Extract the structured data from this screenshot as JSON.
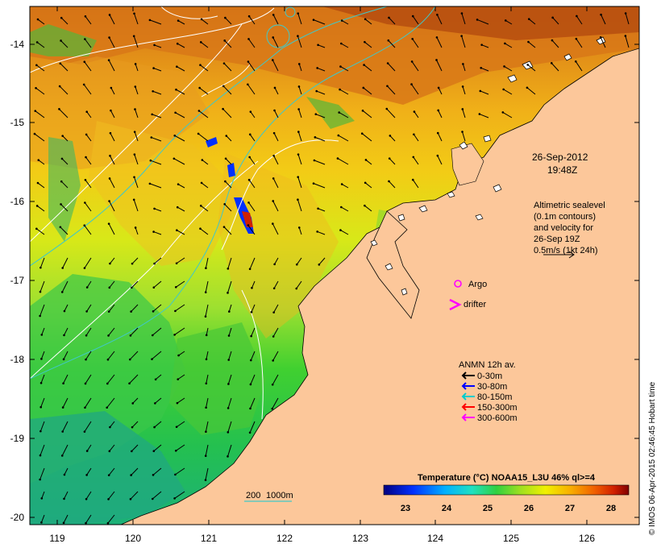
{
  "map": {
    "lon_ticks": [
      "119",
      "120",
      "121",
      "122",
      "123",
      "124",
      "125",
      "126"
    ],
    "lat_ticks": [
      "-14",
      "-15",
      "-16",
      "-17",
      "-18",
      "-19",
      "-20"
    ]
  },
  "annotations": {
    "date": "26-Sep-2012",
    "time": "19:48Z",
    "altimetry_lines": [
      "Altimetric sealevel",
      "(0.1m contours)",
      "and velocity for",
      "26-Sep 19Z",
      "0.5m/s (1kt 24h)"
    ],
    "argo_label": "Argo",
    "drifter_label": "drifter",
    "depth_label_a": "200",
    "depth_label_b": "1000m"
  },
  "legend": {
    "title": "ANMN 12h av.",
    "items": [
      {
        "label": "0-30m",
        "color": "#000000"
      },
      {
        "label": "30-80m",
        "color": "#0000ff"
      },
      {
        "label": "80-150m",
        "color": "#00cccc"
      },
      {
        "label": "150-300m",
        "color": "#ff0000"
      },
      {
        "label": "300-600m",
        "color": "#ff00ff"
      }
    ]
  },
  "colorbar": {
    "title": "Temperature (°C) NOAA15_L3U 46% ql>=4",
    "ticks": [
      "23",
      "24",
      "25",
      "26",
      "27",
      "28"
    ]
  },
  "credit": "© IMOS 06-Apr-2015 02:46:45 Hobart time",
  "colors": {
    "land": "#fcc79a",
    "argo": "#ff00ff",
    "drifter": "#ff00ff",
    "contour": "#ffffff",
    "isobath": "#40c8c8"
  }
}
